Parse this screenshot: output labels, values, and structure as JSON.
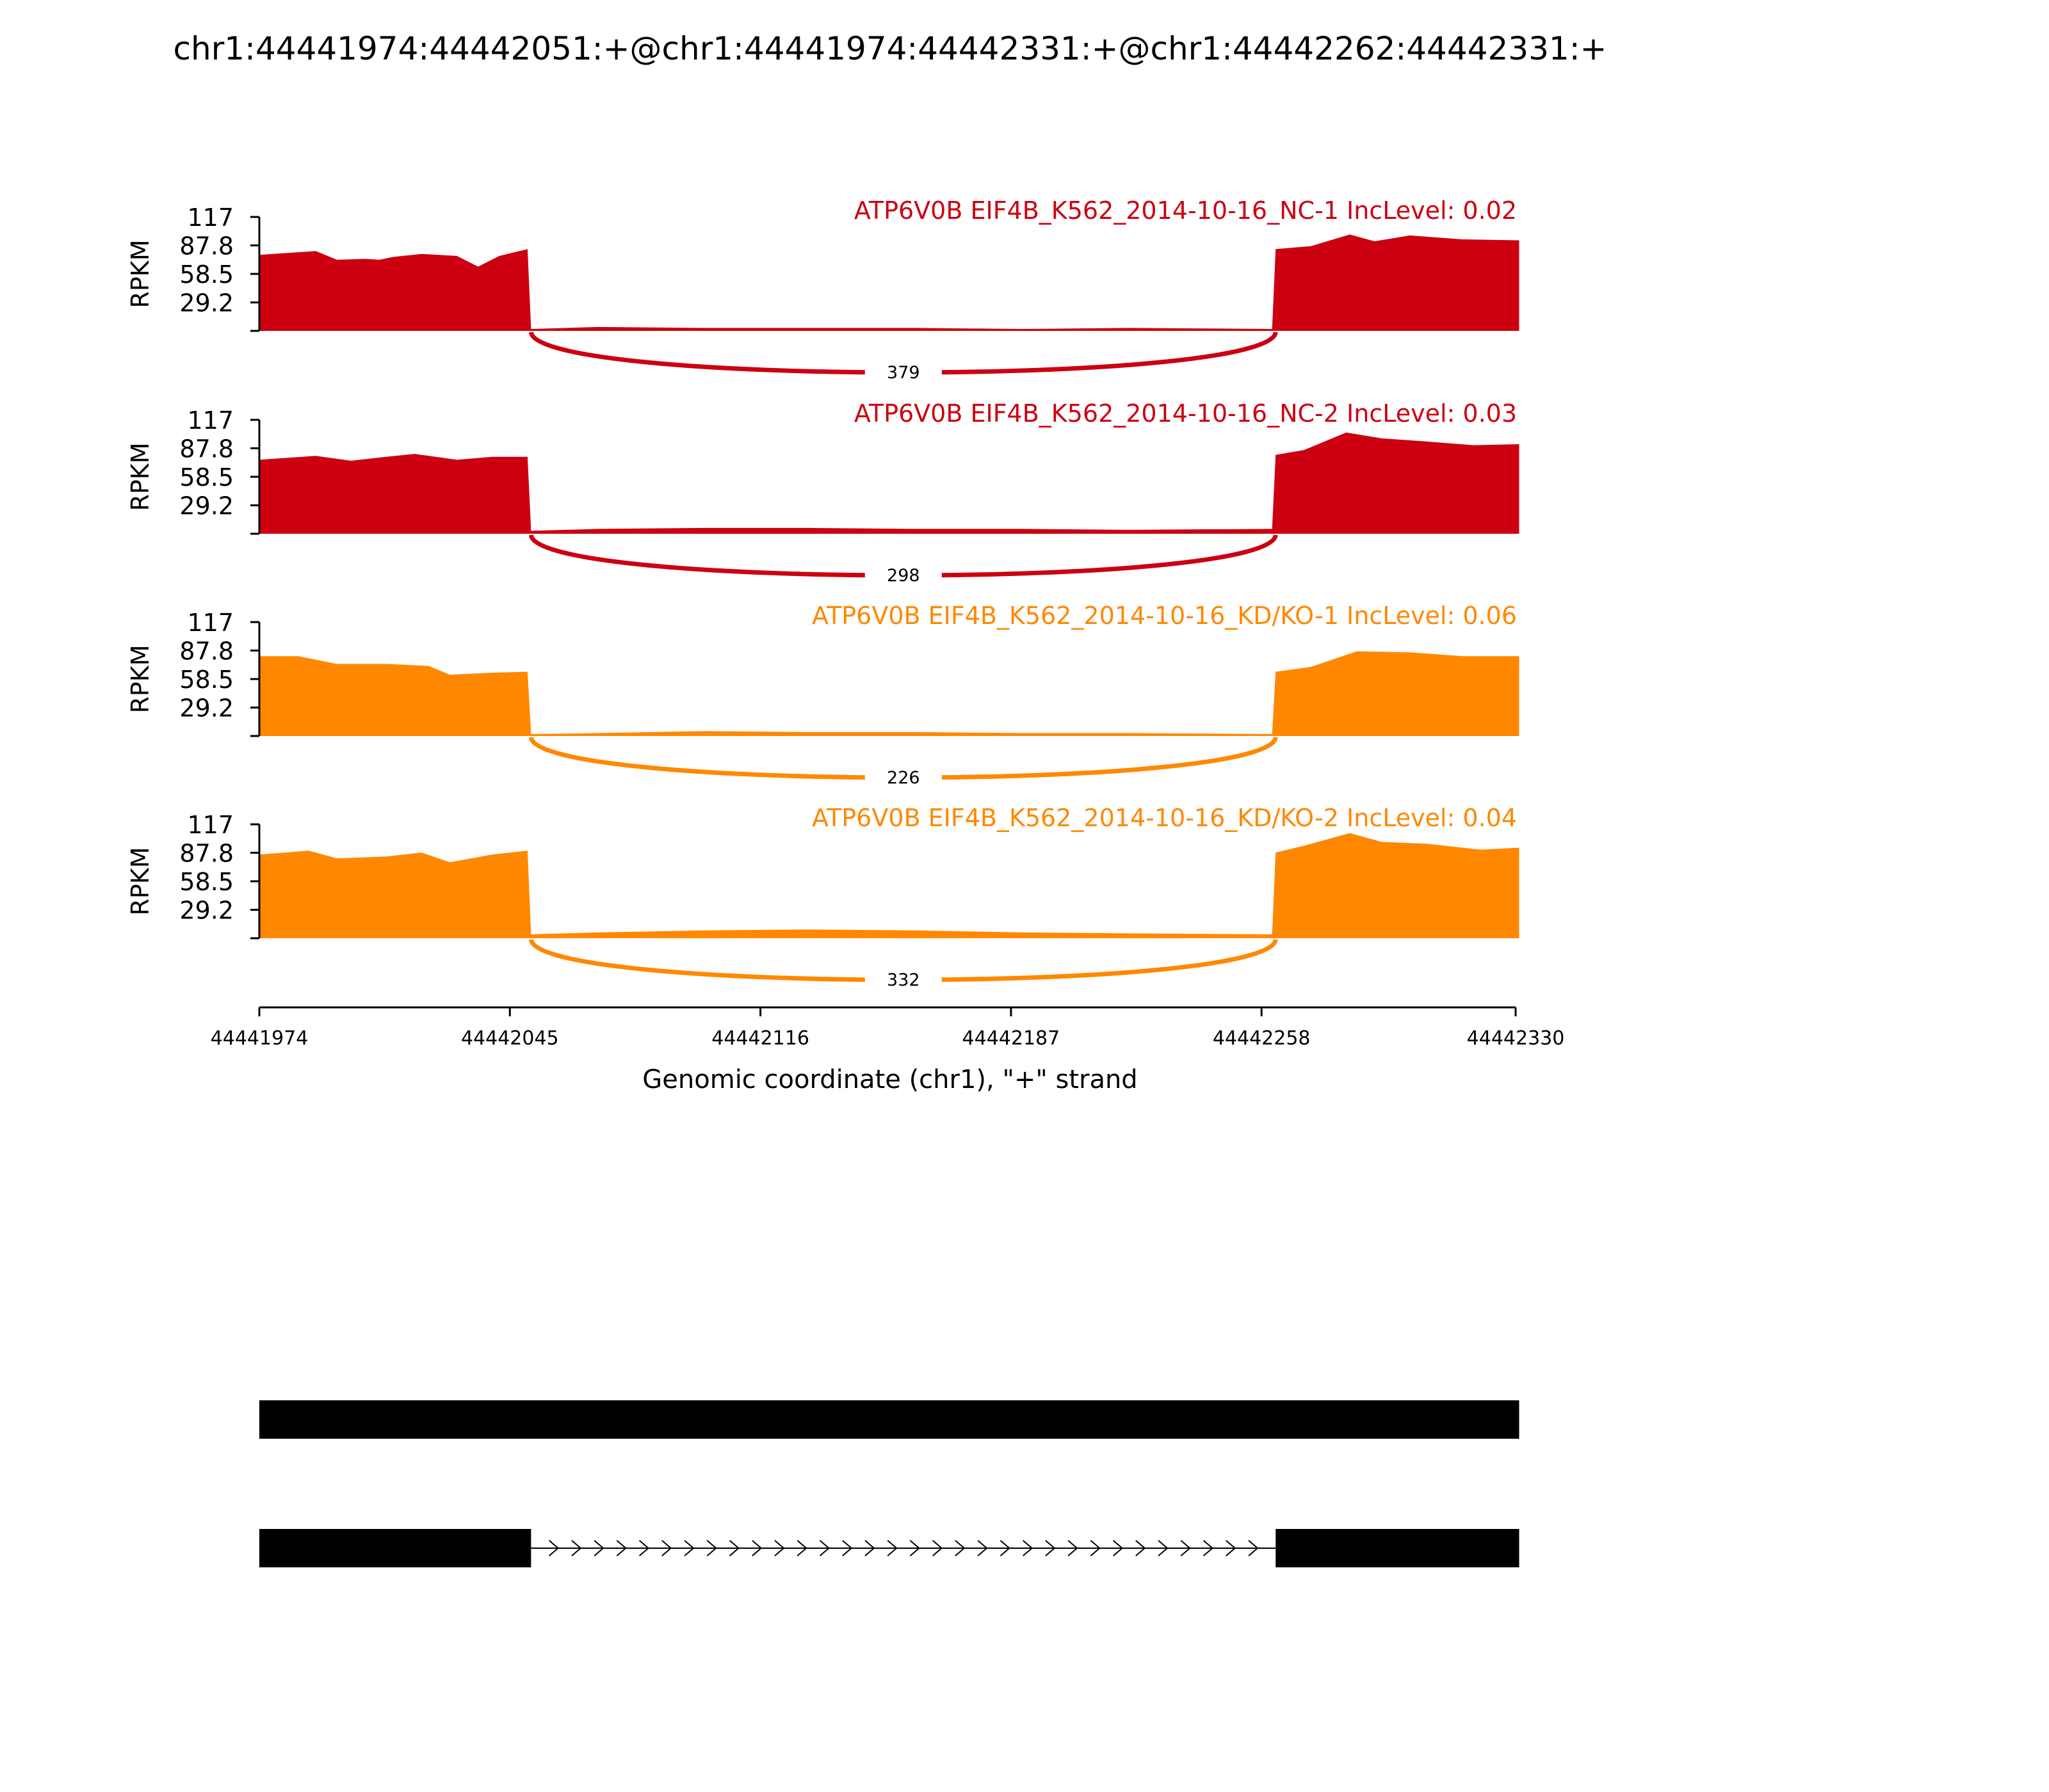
{
  "chart_data": {
    "type": "area",
    "title": "chr1:44441974:44442051:+@chr1:44441974:44442331:+@chr1:44442262:44442331:+",
    "xlabel": "Genomic coordinate (chr1), \"+\" strand",
    "ylabel": "RPKM",
    "xlim": [
      44441974,
      44442330
    ],
    "x_ticks": [
      "44441974",
      "44442045",
      "44442116",
      "44442187",
      "44442258",
      "44442330"
    ],
    "ylim": [
      0,
      117
    ],
    "y_ticks": [
      "117",
      "87.8",
      "58.5",
      "29.2"
    ],
    "exons": [
      [
        44441974,
        44442051
      ],
      [
        44442262,
        44442331
      ]
    ],
    "series": [
      {
        "name": "ATP6V0B EIF4B_K562_2014-10-16_NC-1 IncLevel: 0.02",
        "color": "#cc0011",
        "junction_count": "379",
        "x": [
          44441974,
          44441990,
          44441996,
          44442004,
          44442008,
          44442012,
          44442020,
          44442030,
          44442036,
          44442042,
          44442050,
          44442051,
          44442070,
          44442100,
          44442130,
          44442160,
          44442190,
          44442220,
          44442261,
          44442262,
          44442272,
          44442283,
          44442290,
          44442300,
          44442315,
          44442331
        ],
        "y": [
          78,
          82,
          73,
          74,
          73,
          76,
          79,
          77,
          66,
          77,
          84,
          2,
          4,
          3,
          3,
          3,
          2,
          3,
          2,
          84,
          87,
          99,
          92,
          98,
          94,
          93
        ]
      },
      {
        "name": "ATP6V0B EIF4B_K562_2014-10-16_NC-2 IncLevel: 0.03",
        "color": "#cc0011",
        "junction_count": "298",
        "x": [
          44441974,
          44441990,
          44442000,
          44442010,
          44442018,
          44442024,
          44442030,
          44442040,
          44442050,
          44442051,
          44442070,
          44442100,
          44442130,
          44442160,
          44442190,
          44442220,
          44442261,
          44442262,
          44442270,
          44442282,
          44442292,
          44442304,
          44442318,
          44442331
        ],
        "y": [
          76,
          80,
          75,
          79,
          82,
          79,
          76,
          79,
          79,
          3,
          5,
          6,
          6,
          5,
          5,
          4,
          5,
          81,
          86,
          104,
          98,
          95,
          91,
          92
        ]
      },
      {
        "name": "ATP6V0B EIF4B_K562_2014-10-16_KD/KO-1 IncLevel: 0.06",
        "color": "#ff8800",
        "junction_count": "226",
        "x": [
          44441974,
          44441985,
          44441996,
          44442010,
          44442022,
          44442028,
          44442040,
          44442050,
          44442051,
          44442070,
          44442100,
          44442130,
          44442160,
          44442190,
          44442220,
          44442261,
          44442262,
          44442272,
          44442285,
          44442300,
          44442315,
          44442331
        ],
        "y": [
          82,
          82,
          74,
          74,
          72,
          63,
          65,
          66,
          2,
          3,
          5,
          4,
          4,
          3,
          3,
          2,
          66,
          71,
          87,
          86,
          82,
          82
        ]
      },
      {
        "name": "ATP6V0B EIF4B_K562_2014-10-16_KD/KO-2 IncLevel: 0.04",
        "color": "#ff8800",
        "junction_count": "332",
        "x": [
          44441974,
          44441988,
          44441996,
          44442010,
          44442020,
          44442028,
          44442040,
          44442050,
          44442051,
          44442070,
          44442100,
          44442130,
          44442160,
          44442190,
          44442220,
          44442261,
          44442262,
          44442270,
          44442283,
          44442292,
          44442305,
          44442320,
          44442331
        ],
        "y": [
          86,
          90,
          82,
          84,
          88,
          78,
          86,
          90,
          4,
          6,
          8,
          9,
          8,
          6,
          5,
          4,
          88,
          95,
          108,
          99,
          97,
          91,
          93
        ]
      }
    ],
    "isoforms": [
      {
        "exons": [
          [
            44441974,
            44442331
          ]
        ]
      },
      {
        "exons": [
          [
            44441974,
            44442051
          ],
          [
            44442262,
            44442331
          ]
        ]
      }
    ]
  }
}
